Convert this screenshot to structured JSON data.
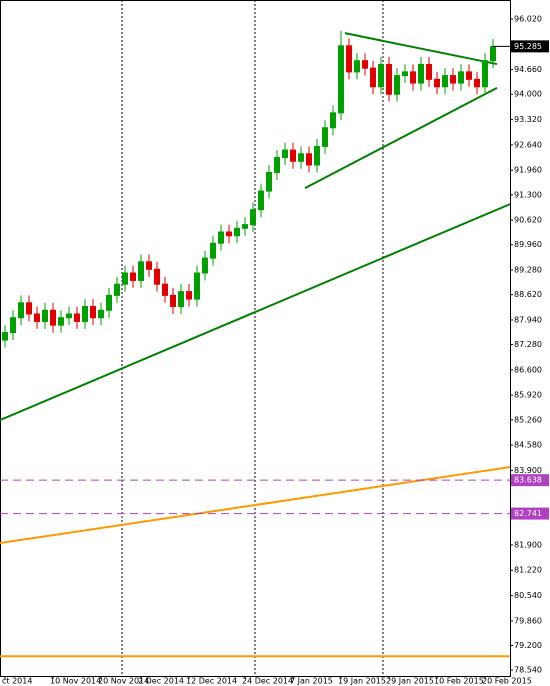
{
  "chart_data": {
    "type": "candlestick",
    "categories": [
      "ct 2014",
      null,
      null,
      null,
      null,
      null,
      "10 Nov 2014",
      null,
      null,
      null,
      null,
      null,
      "20 Nov 2014",
      null,
      null,
      null,
      null,
      "2 Dec 2014",
      null,
      null,
      null,
      null,
      null,
      "12 Dec 2014",
      null,
      null,
      null,
      null,
      null,
      null,
      "24 Dec 2014",
      null,
      null,
      null,
      null,
      null,
      "7 Jan 2015",
      null,
      null,
      null,
      null,
      null,
      "19 Jan 2015",
      null,
      null,
      null,
      null,
      null,
      "29 Jan 2015",
      null,
      null,
      null,
      null,
      null,
      "10 Feb 2015",
      null,
      null,
      null,
      null,
      null,
      "20 Feb 2015",
      null
    ],
    "open": [
      87.4,
      87.6,
      88.0,
      88.4,
      88.1,
      87.9,
      88.2,
      87.8,
      88.0,
      88.1,
      87.9,
      88.3,
      88.0,
      88.2,
      88.6,
      88.9,
      89.2,
      89.0,
      89.5,
      89.3,
      88.9,
      88.6,
      88.3,
      88.7,
      88.5,
      89.2,
      89.6,
      90.0,
      90.3,
      90.2,
      90.4,
      90.5,
      90.9,
      91.4,
      91.9,
      92.3,
      92.5,
      92.2,
      92.4,
      92.1,
      92.6,
      93.1,
      93.5,
      95.3,
      94.6,
      94.9,
      94.7,
      94.2,
      94.8,
      94.0,
      94.5,
      94.6,
      94.3,
      94.8,
      94.4,
      94.2,
      94.5,
      94.3,
      94.6,
      94.4,
      94.2,
      94.9
    ],
    "high": [
      87.8,
      88.2,
      88.6,
      88.6,
      88.3,
      88.4,
      88.4,
      88.2,
      88.3,
      88.3,
      88.5,
      88.5,
      88.4,
      88.8,
      89.1,
      89.4,
      89.4,
      89.7,
      89.7,
      89.5,
      89.1,
      88.8,
      88.9,
      88.9,
      89.4,
      89.8,
      90.2,
      90.5,
      90.5,
      90.6,
      90.7,
      91.1,
      91.6,
      92.1,
      92.5,
      92.7,
      92.7,
      92.6,
      92.6,
      92.8,
      93.3,
      93.7,
      95.7,
      95.5,
      95.1,
      95.1,
      94.9,
      95.0,
      95.0,
      94.7,
      94.8,
      94.8,
      95.0,
      95.0,
      94.6,
      94.7,
      94.7,
      94.8,
      94.8,
      94.6,
      95.1,
      95.48
    ],
    "low": [
      87.2,
      87.4,
      87.8,
      87.9,
      87.7,
      87.7,
      87.6,
      87.6,
      87.8,
      87.7,
      87.7,
      87.8,
      87.8,
      88.0,
      88.4,
      88.7,
      88.8,
      88.8,
      89.1,
      88.7,
      88.4,
      88.1,
      88.1,
      88.3,
      88.3,
      89.0,
      89.4,
      89.8,
      90.0,
      90.0,
      90.2,
      90.3,
      90.7,
      91.2,
      91.7,
      92.1,
      92.0,
      92.0,
      91.9,
      91.9,
      92.4,
      92.9,
      93.3,
      94.4,
      94.4,
      94.5,
      94.0,
      94.0,
      93.8,
      93.8,
      94.3,
      94.1,
      94.1,
      94.2,
      94.0,
      94.0,
      94.1,
      94.1,
      94.2,
      94.0,
      94.0,
      94.7
    ],
    "close": [
      87.6,
      88.0,
      88.4,
      88.1,
      87.9,
      88.2,
      87.8,
      88.0,
      88.1,
      87.9,
      88.3,
      88.0,
      88.2,
      88.6,
      88.9,
      89.2,
      89.0,
      89.5,
      89.3,
      88.9,
      88.6,
      88.3,
      88.7,
      88.5,
      89.2,
      89.6,
      90.0,
      90.3,
      90.2,
      90.4,
      90.5,
      90.9,
      91.4,
      91.9,
      92.3,
      92.5,
      92.2,
      92.4,
      92.1,
      92.6,
      93.1,
      93.5,
      95.3,
      94.6,
      94.9,
      94.7,
      94.2,
      94.8,
      94.0,
      94.5,
      94.6,
      94.3,
      94.8,
      94.4,
      94.2,
      94.5,
      94.3,
      94.6,
      94.4,
      94.2,
      94.9,
      95.28
    ],
    "up_color": "#00a000",
    "down_color": "#e00000",
    "ylim": [
      78.38,
      96.53
    ],
    "yticks": [
      {
        "value": 96.02,
        "label": "96.020"
      },
      {
        "value": 94.66,
        "label": "94.660"
      },
      {
        "value": 94.0,
        "label": "94.000"
      },
      {
        "value": 93.32,
        "label": "93.320"
      },
      {
        "value": 92.64,
        "label": "92.640"
      },
      {
        "value": 91.96,
        "label": "91.960"
      },
      {
        "value": 91.3,
        "label": "91.300"
      },
      {
        "value": 90.62,
        "label": "90.620"
      },
      {
        "value": 89.96,
        "label": "89.960"
      },
      {
        "value": 89.28,
        "label": "89.280"
      },
      {
        "value": 88.62,
        "label": "88.620"
      },
      {
        "value": 87.94,
        "label": "87.940"
      },
      {
        "value": 87.28,
        "label": "87.280"
      },
      {
        "value": 86.6,
        "label": "86.600"
      },
      {
        "value": 85.92,
        "label": "85.920"
      },
      {
        "value": 85.26,
        "label": "85.260"
      },
      {
        "value": 84.58,
        "label": "84.580"
      },
      {
        "value": 83.9,
        "label": "83.900"
      },
      {
        "value": 81.9,
        "label": "81.900"
      },
      {
        "value": 81.22,
        "label": "81.220"
      },
      {
        "value": 80.54,
        "label": "80.540"
      },
      {
        "value": 79.86,
        "label": "79.860"
      },
      {
        "value": 79.2,
        "label": "79.200"
      },
      {
        "value": 78.54,
        "label": "78.540"
      }
    ],
    "current_price": {
      "value": 95.285,
      "color": "#000000"
    },
    "levels": [
      {
        "value": 83.638,
        "color": "#b040c0",
        "dashed": true,
        "labeled": true
      },
      {
        "value": 82.741,
        "color": "#b040c0",
        "dashed": true,
        "labeled": true
      },
      {
        "value": 78.91,
        "color": "#ff9900",
        "dashed": false,
        "labeled": false
      }
    ],
    "trendlines": [
      {
        "color": "#ff9900",
        "x": [
          -0.625,
          63.125
        ],
        "y": [
          81.95,
          83.99
        ]
      },
      {
        "color": "#008000",
        "x": [
          -0.625,
          63.125
        ],
        "y": [
          85.25,
          91.05
        ]
      },
      {
        "color": "#008000",
        "x": [
          42.5,
          61.5
        ],
        "y": [
          95.64,
          94.81
        ]
      },
      {
        "color": "#008000",
        "x": [
          37.5,
          61.5
        ],
        "y": [
          91.48,
          94.17
        ]
      }
    ]
  }
}
